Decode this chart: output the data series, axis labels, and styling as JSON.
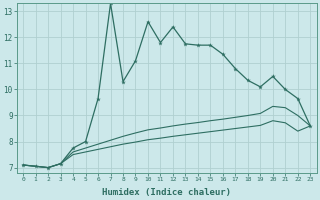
{
  "xlabel": "Humidex (Indice chaleur)",
  "background_color": "#cce8ea",
  "grid_color": "#b0d0d0",
  "line_color": "#2e6e62",
  "xlim_min": -0.5,
  "xlim_max": 23.5,
  "ylim_min": 6.8,
  "ylim_max": 13.3,
  "yticks": [
    7,
    8,
    9,
    10,
    11,
    12,
    13
  ],
  "xticks": [
    0,
    1,
    2,
    3,
    4,
    5,
    6,
    7,
    8,
    9,
    10,
    11,
    12,
    13,
    14,
    15,
    16,
    17,
    18,
    19,
    20,
    21,
    22,
    23
  ],
  "line1_x": [
    0,
    1,
    2,
    3,
    4,
    5,
    6,
    7,
    8,
    9,
    10,
    11,
    12,
    13,
    14,
    15,
    16,
    17,
    18,
    19,
    20,
    21,
    22,
    23
  ],
  "line1_y": [
    7.1,
    7.05,
    7.0,
    7.15,
    7.75,
    8.0,
    9.65,
    13.3,
    10.3,
    11.1,
    12.6,
    11.8,
    12.4,
    11.75,
    11.7,
    11.7,
    11.35,
    10.8,
    10.35,
    10.1,
    10.5,
    10.0,
    9.65,
    8.6
  ],
  "line2_x": [
    0,
    1,
    2,
    3,
    4,
    5,
    6,
    7,
    8,
    9,
    10,
    11,
    12,
    13,
    14,
    15,
    16,
    17,
    18,
    19,
    20,
    21,
    22,
    23
  ],
  "line2_y": [
    7.1,
    7.05,
    7.0,
    7.15,
    7.6,
    7.75,
    7.9,
    8.05,
    8.2,
    8.33,
    8.45,
    8.52,
    8.6,
    8.67,
    8.73,
    8.8,
    8.86,
    8.93,
    9.0,
    9.08,
    9.35,
    9.3,
    9.0,
    8.6
  ],
  "line3_x": [
    0,
    1,
    2,
    3,
    4,
    5,
    6,
    7,
    8,
    9,
    10,
    11,
    12,
    13,
    14,
    15,
    16,
    17,
    18,
    19,
    20,
    21,
    22,
    23
  ],
  "line3_y": [
    7.1,
    7.05,
    7.0,
    7.15,
    7.5,
    7.6,
    7.7,
    7.8,
    7.9,
    7.98,
    8.07,
    8.13,
    8.2,
    8.26,
    8.32,
    8.38,
    8.44,
    8.5,
    8.56,
    8.62,
    8.8,
    8.72,
    8.4,
    8.6
  ]
}
